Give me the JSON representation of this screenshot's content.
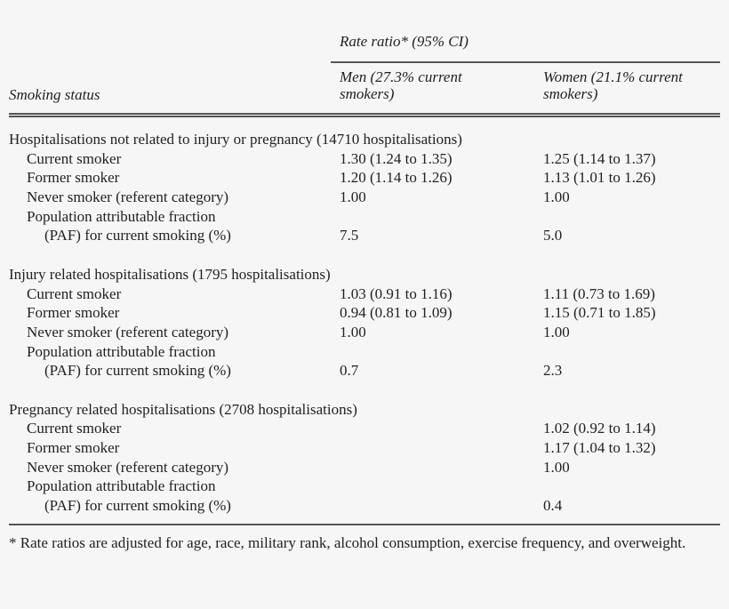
{
  "header": {
    "group_label": "Rate ratio* (95% CI)",
    "stub": "Smoking status",
    "men": [
      "Men (27.3% current",
      "smokers)"
    ],
    "women": [
      "Women (21.1% current",
      "smokers)"
    ]
  },
  "sections": [
    {
      "title": "Hospitalisations not related to injury or pregnancy (14710 hospitalisations)",
      "rows": [
        {
          "label": "Current smoker",
          "men": "1.30 (1.24 to 1.35)",
          "women": "1.25 (1.14 to 1.37)"
        },
        {
          "label": "Former smoker",
          "men": "1.20 (1.14 to 1.26)",
          "women": "1.13 (1.01 to 1.26)"
        },
        {
          "label": "Never smoker (referent category)",
          "men": "1.00",
          "women": "1.00"
        }
      ],
      "paf": {
        "label1": "Population attributable fraction",
        "label2": "(PAF) for current smoking (%)",
        "men": "7.5",
        "women": "5.0"
      }
    },
    {
      "title": "Injury related hospitalisations (1795 hospitalisations)",
      "rows": [
        {
          "label": "Current smoker",
          "men": "1.03 (0.91 to 1.16)",
          "women": "1.11 (0.73 to 1.69)"
        },
        {
          "label": "Former smoker",
          "men": "0.94 (0.81 to 1.09)",
          "women": "1.15 (0.71 to 1.85)"
        },
        {
          "label": "Never smoker (referent category)",
          "men": "1.00",
          "women": "1.00"
        }
      ],
      "paf": {
        "label1": "Population attributable fraction",
        "label2": "(PAF) for current smoking (%)",
        "men": "0.7",
        "women": "2.3"
      }
    },
    {
      "title": "Pregnancy related hospitalisations (2708 hospitalisations)",
      "rows": [
        {
          "label": "Current smoker",
          "men": "",
          "women": "1.02 (0.92 to 1.14)"
        },
        {
          "label": "Former smoker",
          "men": "",
          "women": "1.17 (1.04 to 1.32)"
        },
        {
          "label": "Never smoker (referent category)",
          "men": "",
          "women": "1.00"
        }
      ],
      "paf": {
        "label1": "Population attributable fraction",
        "label2": "(PAF) for current smoking (%)",
        "men": "",
        "women": "0.4"
      }
    }
  ],
  "footnote": "* Rate ratios are adjusted for age, race, military rank, alcohol consumption, exercise frequency, and overweight."
}
